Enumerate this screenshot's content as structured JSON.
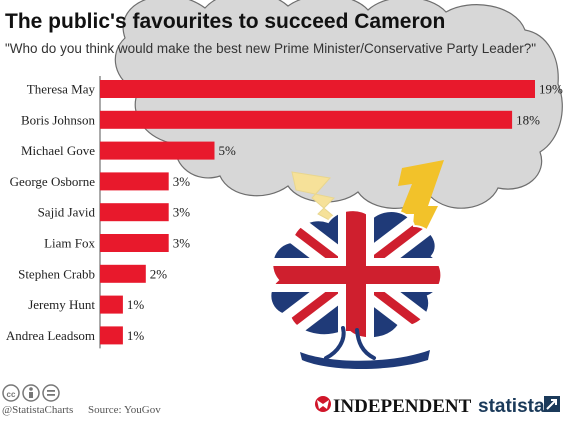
{
  "chart_data": {
    "type": "bar",
    "orientation": "horizontal",
    "title": "The public's favourites to succeed Cameron",
    "subtitle": "\"Who do you think would make the best new Prime Minister/Conservative Party Leader?\"",
    "categories": [
      "Theresa May",
      "Boris Johnson",
      "Michael Gove",
      "George Osborne",
      "Sajid Javid",
      "Liam Fox",
      "Stephen Crabb",
      "Jeremy Hunt",
      "Andrea Leadsom"
    ],
    "values": [
      19,
      18,
      5,
      3,
      3,
      3,
      2,
      1,
      1
    ],
    "value_labels": [
      "19%",
      "18%",
      "5%",
      "3%",
      "3%",
      "3%",
      "2%",
      "1%",
      "1%"
    ],
    "value_unit": "%",
    "xlim": [
      0,
      19
    ],
    "grid": false,
    "colors": {
      "bar": "#e8192c",
      "axis": "#555555"
    }
  },
  "footer": {
    "handle": "@StatistaCharts",
    "source": "Source: YouGov",
    "independent_logo": "INDEPENDENT",
    "statista_logo": "statista"
  },
  "icons": [
    "cc-license-icon",
    "attribution-icon",
    "no-derivatives-icon",
    "eagle-icon",
    "statista-arrow-icon",
    "cloud-icon",
    "lightning-icon",
    "union-jack-tree-icon"
  ]
}
